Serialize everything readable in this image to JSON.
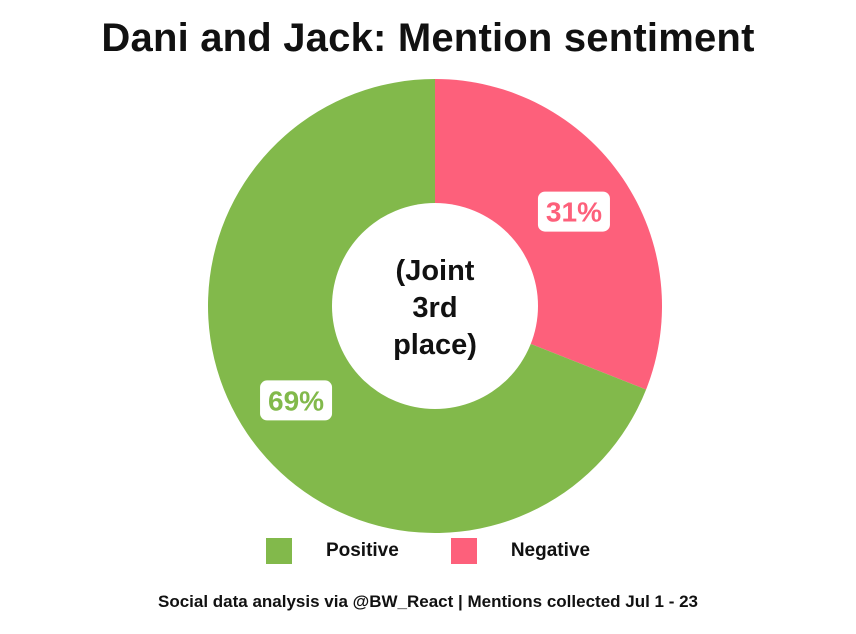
{
  "title": "Dani and Jack: Mention sentiment",
  "center_label": [
    "(Joint",
    "3rd",
    "place)"
  ],
  "footer": "Social data analysis via @BW_React | Mentions collected Jul 1 - 23",
  "chart_data": {
    "type": "pie",
    "style": "donut",
    "title": "Dani and Jack: Mention sentiment",
    "categories": [
      "Positive",
      "Negative"
    ],
    "values": [
      69,
      31
    ],
    "labels": [
      "69%",
      "31%"
    ],
    "colors": [
      "#82b94b",
      "#fd607b"
    ],
    "legend": "bottom"
  }
}
